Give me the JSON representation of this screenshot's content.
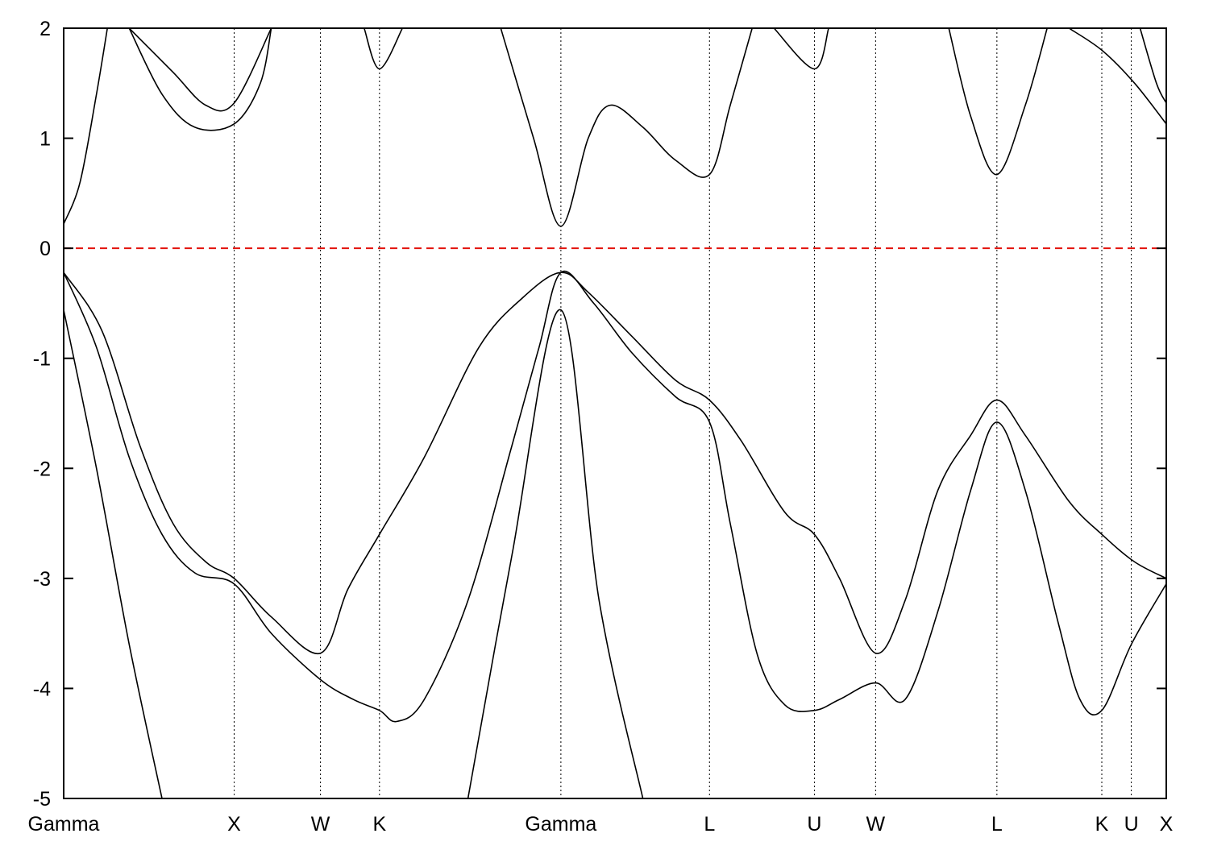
{
  "chart_data": {
    "type": "line",
    "title": "",
    "xlabel": "",
    "ylabel": "",
    "ylim": [
      -5,
      2
    ],
    "yticks": [
      2,
      1,
      0,
      -1,
      -2,
      -3,
      -4,
      -5
    ],
    "ytick_labels": [
      "2",
      "1",
      "0",
      "-1",
      "-2",
      "-3",
      "-4",
      "-5"
    ],
    "xlim": [
      0,
      10.09
    ],
    "high_symmetry_points": [
      {
        "label": "Gamma",
        "x": 0.0
      },
      {
        "label": "X",
        "x": 1.56
      },
      {
        "label": "W",
        "x": 2.35
      },
      {
        "label": "K",
        "x": 2.89
      },
      {
        "label": "Gamma",
        "x": 4.55
      },
      {
        "label": "L",
        "x": 5.91
      },
      {
        "label": "U",
        "x": 6.87
      },
      {
        "label": "W",
        "x": 7.43
      },
      {
        "label": "L",
        "x": 8.54
      },
      {
        "label": "K",
        "x": 9.5
      },
      {
        "label": "U",
        "x": 9.77
      },
      {
        "label": "X",
        "x": 10.09
      }
    ],
    "fermi_level": {
      "y": 0,
      "color": "#e3120b",
      "style": "dashed"
    },
    "grid": false,
    "series": [
      {
        "values": [
          [
            0.0,
            -0.56
          ],
          [
            0.3,
            -2.0
          ],
          [
            0.6,
            -3.6
          ],
          [
            0.9,
            -5.0
          ]
        ]
      },
      {
        "values": [
          [
            3.7,
            -5.0
          ],
          [
            4.1,
            -2.8
          ],
          [
            4.55,
            -0.56
          ],
          [
            4.9,
            -3.2
          ],
          [
            5.3,
            -5.0
          ]
        ]
      },
      {
        "values": [
          [
            0.0,
            -0.22
          ],
          [
            0.3,
            -0.9
          ],
          [
            0.6,
            -1.9
          ],
          [
            0.9,
            -2.6
          ],
          [
            1.2,
            -2.95
          ],
          [
            1.56,
            -3.05
          ],
          [
            1.9,
            -3.5
          ],
          [
            2.35,
            -3.92
          ],
          [
            2.65,
            -4.1
          ],
          [
            2.89,
            -4.2
          ],
          [
            3.05,
            -4.3
          ],
          [
            3.3,
            -4.1
          ],
          [
            3.7,
            -3.2
          ],
          [
            4.1,
            -1.8
          ],
          [
            4.35,
            -0.9
          ],
          [
            4.55,
            -0.22
          ],
          [
            4.85,
            -0.5
          ],
          [
            5.2,
            -0.95
          ],
          [
            5.6,
            -1.35
          ],
          [
            5.91,
            -1.58
          ],
          [
            6.1,
            -2.5
          ],
          [
            6.35,
            -3.7
          ],
          [
            6.6,
            -4.15
          ],
          [
            6.87,
            -4.2
          ],
          [
            7.1,
            -4.1
          ],
          [
            7.43,
            -3.95
          ],
          [
            7.7,
            -4.1
          ],
          [
            8.0,
            -3.3
          ],
          [
            8.3,
            -2.2
          ],
          [
            8.54,
            -1.58
          ],
          [
            8.8,
            -2.2
          ],
          [
            9.1,
            -3.4
          ],
          [
            9.3,
            -4.1
          ],
          [
            9.5,
            -4.2
          ],
          [
            9.77,
            -3.6
          ],
          [
            10.09,
            -3.05
          ]
        ]
      },
      {
        "values": [
          [
            0.0,
            -0.22
          ],
          [
            0.35,
            -0.75
          ],
          [
            0.7,
            -1.8
          ],
          [
            1.0,
            -2.5
          ],
          [
            1.3,
            -2.85
          ],
          [
            1.56,
            -3.0
          ],
          [
            1.9,
            -3.35
          ],
          [
            2.35,
            -3.68
          ],
          [
            2.6,
            -3.1
          ],
          [
            2.89,
            -2.6
          ],
          [
            3.3,
            -1.9
          ],
          [
            3.8,
            -0.9
          ],
          [
            4.2,
            -0.45
          ],
          [
            4.55,
            -0.22
          ],
          [
            4.8,
            -0.4
          ],
          [
            5.2,
            -0.8
          ],
          [
            5.6,
            -1.2
          ],
          [
            5.91,
            -1.38
          ],
          [
            6.2,
            -1.75
          ],
          [
            6.6,
            -2.4
          ],
          [
            6.87,
            -2.6
          ],
          [
            7.1,
            -3.0
          ],
          [
            7.43,
            -3.68
          ],
          [
            7.7,
            -3.2
          ],
          [
            8.0,
            -2.2
          ],
          [
            8.3,
            -1.7
          ],
          [
            8.54,
            -1.38
          ],
          [
            8.8,
            -1.7
          ],
          [
            9.2,
            -2.3
          ],
          [
            9.5,
            -2.6
          ],
          [
            9.8,
            -2.85
          ],
          [
            10.09,
            -3.0
          ]
        ]
      },
      {
        "values": [
          [
            0.0,
            0.22
          ],
          [
            0.15,
            0.6
          ],
          [
            0.3,
            1.4
          ],
          [
            0.4,
            2.0
          ]
        ]
      },
      {
        "values": [
          [
            0.6,
            2.0
          ],
          [
            1.0,
            1.6
          ],
          [
            1.3,
            1.3
          ],
          [
            1.56,
            1.32
          ],
          [
            1.9,
            2.0
          ]
        ]
      },
      {
        "values": [
          [
            0.6,
            2.0
          ],
          [
            0.9,
            1.4
          ],
          [
            1.2,
            1.1
          ],
          [
            1.56,
            1.13
          ],
          [
            1.8,
            1.5
          ],
          [
            1.9,
            2.0
          ]
        ]
      },
      {
        "values": [
          [
            2.75,
            2.0
          ],
          [
            2.89,
            1.63
          ],
          [
            3.1,
            2.0
          ]
        ]
      },
      {
        "values": [
          [
            4.0,
            2.0
          ],
          [
            4.3,
            1.0
          ],
          [
            4.55,
            0.2
          ],
          [
            4.8,
            1.0
          ],
          [
            5.0,
            1.3
          ],
          [
            5.3,
            1.1
          ],
          [
            5.6,
            0.8
          ],
          [
            5.91,
            0.67
          ],
          [
            6.1,
            1.3
          ],
          [
            6.3,
            2.0
          ]
        ]
      },
      {
        "values": [
          [
            6.5,
            2.0
          ],
          [
            6.87,
            1.63
          ],
          [
            7.0,
            2.0
          ]
        ]
      },
      {
        "values": [
          [
            8.1,
            2.0
          ],
          [
            8.3,
            1.2
          ],
          [
            8.54,
            0.67
          ],
          [
            8.8,
            1.3
          ],
          [
            9.0,
            2.0
          ]
        ]
      },
      {
        "values": [
          [
            9.2,
            2.0
          ],
          [
            9.5,
            1.8
          ],
          [
            9.8,
            1.5
          ],
          [
            10.09,
            1.13
          ]
        ]
      },
      {
        "values": [
          [
            9.85,
            2.0
          ],
          [
            10.0,
            1.5
          ],
          [
            10.09,
            1.32
          ]
        ]
      }
    ]
  }
}
